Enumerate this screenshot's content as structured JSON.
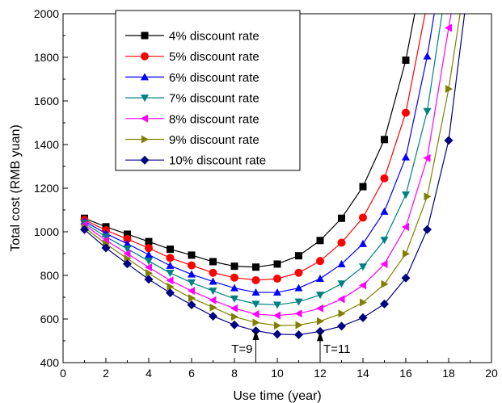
{
  "chart_data": {
    "type": "line",
    "title": "",
    "xlabel": "Use time (year)",
    "ylabel": "Total cost (RMB yuan)",
    "xlim": [
      0,
      20
    ],
    "ylim": [
      400,
      2000
    ],
    "xticks": [
      0,
      2,
      4,
      6,
      8,
      10,
      12,
      14,
      16,
      18,
      20
    ],
    "yticks": [
      400,
      600,
      800,
      1000,
      1200,
      1400,
      1600,
      1800,
      2000
    ],
    "grid": false,
    "legend_position": "top-left",
    "x": [
      1,
      2,
      3,
      4,
      5,
      6,
      7,
      8,
      9,
      10,
      11,
      12,
      13,
      14,
      15,
      16,
      17,
      18,
      19
    ],
    "series": [
      {
        "name": "4% discount rate",
        "color": "#000000",
        "marker": "square",
        "values": [
          1062,
          1023,
          989,
          955,
          920,
          893,
          863,
          842,
          838,
          852,
          890,
          960,
          1062,
          1207,
          1423,
          1787,
          2300,
          null,
          null
        ]
      },
      {
        "name": "5% discount rate",
        "color": "#ff0000",
        "marker": "circle",
        "values": [
          1055,
          1007,
          967,
          925,
          880,
          846,
          812,
          790,
          778,
          785,
          812,
          866,
          950,
          1065,
          1245,
          1546,
          2050,
          null,
          null
        ]
      },
      {
        "name": "6% discount rate",
        "color": "#0000ff",
        "marker": "triangle-up",
        "values": [
          1048,
          992,
          945,
          895,
          845,
          805,
          772,
          742,
          722,
          722,
          742,
          785,
          852,
          945,
          1093,
          1342,
          1805,
          2400,
          null
        ]
      },
      {
        "name": "7% discount rate",
        "color": "#008080",
        "marker": "triangle-down",
        "values": [
          1040,
          977,
          922,
          866,
          811,
          767,
          729,
          693,
          669,
          665,
          679,
          710,
          762,
          840,
          962,
          1170,
          1553,
          2200,
          null
        ]
      },
      {
        "name": "8% discount rate",
        "color": "#ff00ff",
        "marker": "triangle-left",
        "values": [
          1032,
          961,
          900,
          837,
          777,
          729,
          686,
          649,
          622,
          616,
          625,
          649,
          691,
          754,
          852,
          1022,
          1338,
          1935,
          2500
        ]
      },
      {
        "name": "9% discount rate",
        "color": "#808000",
        "marker": "triangle-right",
        "values": [
          1020,
          945,
          877,
          810,
          748,
          696,
          653,
          610,
          584,
          570,
          572,
          590,
          625,
          676,
          760,
          899,
          1162,
          1655,
          2300
        ]
      },
      {
        "name": "10% discount rate",
        "color": "#000080",
        "marker": "diamond",
        "values": [
          1010,
          926,
          853,
          782,
          720,
          665,
          613,
          573,
          546,
          530,
          528,
          543,
          567,
          606,
          669,
          788,
          1010,
          1419,
          2200
        ]
      }
    ],
    "annotations": [
      {
        "text": "T=9",
        "x": 9,
        "y": 548
      },
      {
        "text": "T=11",
        "x": 12,
        "y": 543
      }
    ]
  }
}
